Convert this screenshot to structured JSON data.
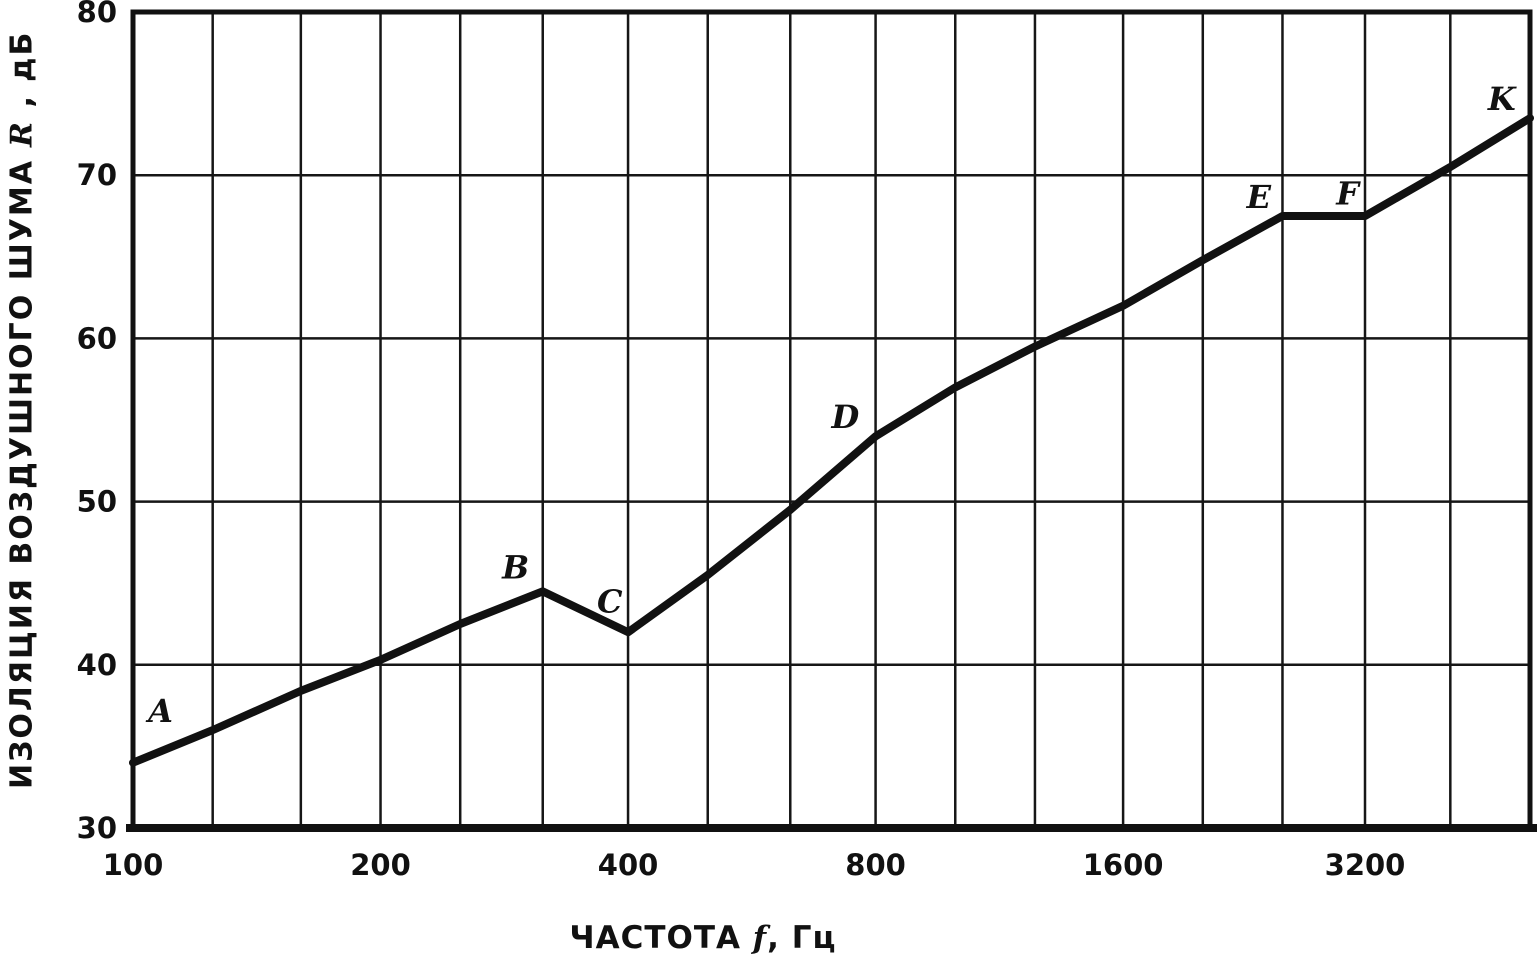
{
  "figure": {
    "background": "#ffffff",
    "ink": "#111111",
    "grid_color": "#161616"
  },
  "axes": {
    "x_title": {
      "prefix": "ЧАСТОТА ",
      "symbol": "f",
      "suffix": ", Гц"
    },
    "y_title": {
      "prefix": "ИЗОЛЯЦИЯ ВОЗДУШНОГО ШУМА ",
      "symbol": "R",
      "suffix": " , дБ"
    }
  },
  "chart_data": {
    "type": "line",
    "title": "",
    "xlabel": "ЧАСТОТА f, Гц",
    "ylabel": "ИЗОЛЯЦИЯ ВОЗДУШНОГО ШУМА R, дБ",
    "x_scale": "log",
    "grid": true,
    "legend": false,
    "xlim": [
      100,
      5000
    ],
    "ylim": [
      30,
      80
    ],
    "y_ticks": [
      30,
      40,
      50,
      60,
      70,
      80
    ],
    "x_gridlines": [
      100,
      125,
      160,
      200,
      250,
      315,
      400,
      500,
      630,
      800,
      1000,
      1250,
      1600,
      2000,
      2500,
      3150,
      4000,
      5000
    ],
    "x_ticks": [
      {
        "f": 100,
        "label": "100"
      },
      {
        "f": 200,
        "label": "200"
      },
      {
        "f": 400,
        "label": "400"
      },
      {
        "f": 800,
        "label": "800"
      },
      {
        "f": 1600,
        "label": "1600"
      },
      {
        "f": 3150,
        "label": "3200"
      }
    ],
    "series": [
      {
        "name": "изоляция воздушного шума R(f)",
        "x": [
          100,
          125,
          160,
          200,
          250,
          315,
          400,
          500,
          630,
          800,
          1000,
          1250,
          1600,
          2000,
          2500,
          3150,
          4000,
          5000
        ],
        "y": [
          34,
          36,
          38.4,
          40.3,
          42.5,
          44.5,
          42,
          45.5,
          49.5,
          54,
          57,
          59.5,
          62,
          64.8,
          67.5,
          67.5,
          70.5,
          73.5
        ]
      }
    ],
    "point_labels": [
      {
        "label": "A",
        "f": 108,
        "db": 36.5
      },
      {
        "label": "B",
        "f": 292,
        "db": 45.3
      },
      {
        "label": "C",
        "f": 380,
        "db": 43.2
      },
      {
        "label": "D",
        "f": 735,
        "db": 54.5
      },
      {
        "label": "E",
        "f": 2340,
        "db": 68.0
      },
      {
        "label": "F",
        "f": 3000,
        "db": 68.2
      },
      {
        "label": "K",
        "f": 4620,
        "db": 74.0
      }
    ]
  }
}
